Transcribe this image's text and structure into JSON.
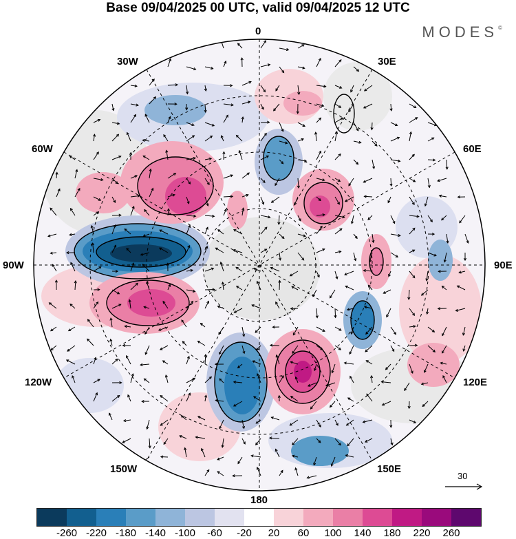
{
  "title": "Base 09/04/2025 00 UTC, valid 09/04/2025 12 UTC",
  "brand": "MODES",
  "brand_mark": "©",
  "longitude_labels": {
    "n": "0",
    "nne": "30E",
    "ene": "60E",
    "e": "90E",
    "ese": "120E",
    "sse": "150E",
    "s": "180",
    "ssw": "150W",
    "wsw": "120W",
    "w": "90W",
    "wnw": "60W",
    "nnw": "30W"
  },
  "reference_vector": "30",
  "colorbar": {
    "colors": [
      "#0b3a5c",
      "#125f8f",
      "#2a7fb8",
      "#5a9cc8",
      "#8fb4d8",
      "#bcc6e2",
      "#e2e2f0",
      "#ffffff",
      "#f8d3d9",
      "#f3aabd",
      "#ea7fa6",
      "#dd4b94",
      "#c01a84",
      "#9a0a7c",
      "#5e086e"
    ],
    "ticks": [
      "-260",
      "-220",
      "-180",
      "-140",
      "-100",
      "-60",
      "-20",
      "20",
      "60",
      "100",
      "140",
      "180",
      "220",
      "260"
    ]
  }
}
